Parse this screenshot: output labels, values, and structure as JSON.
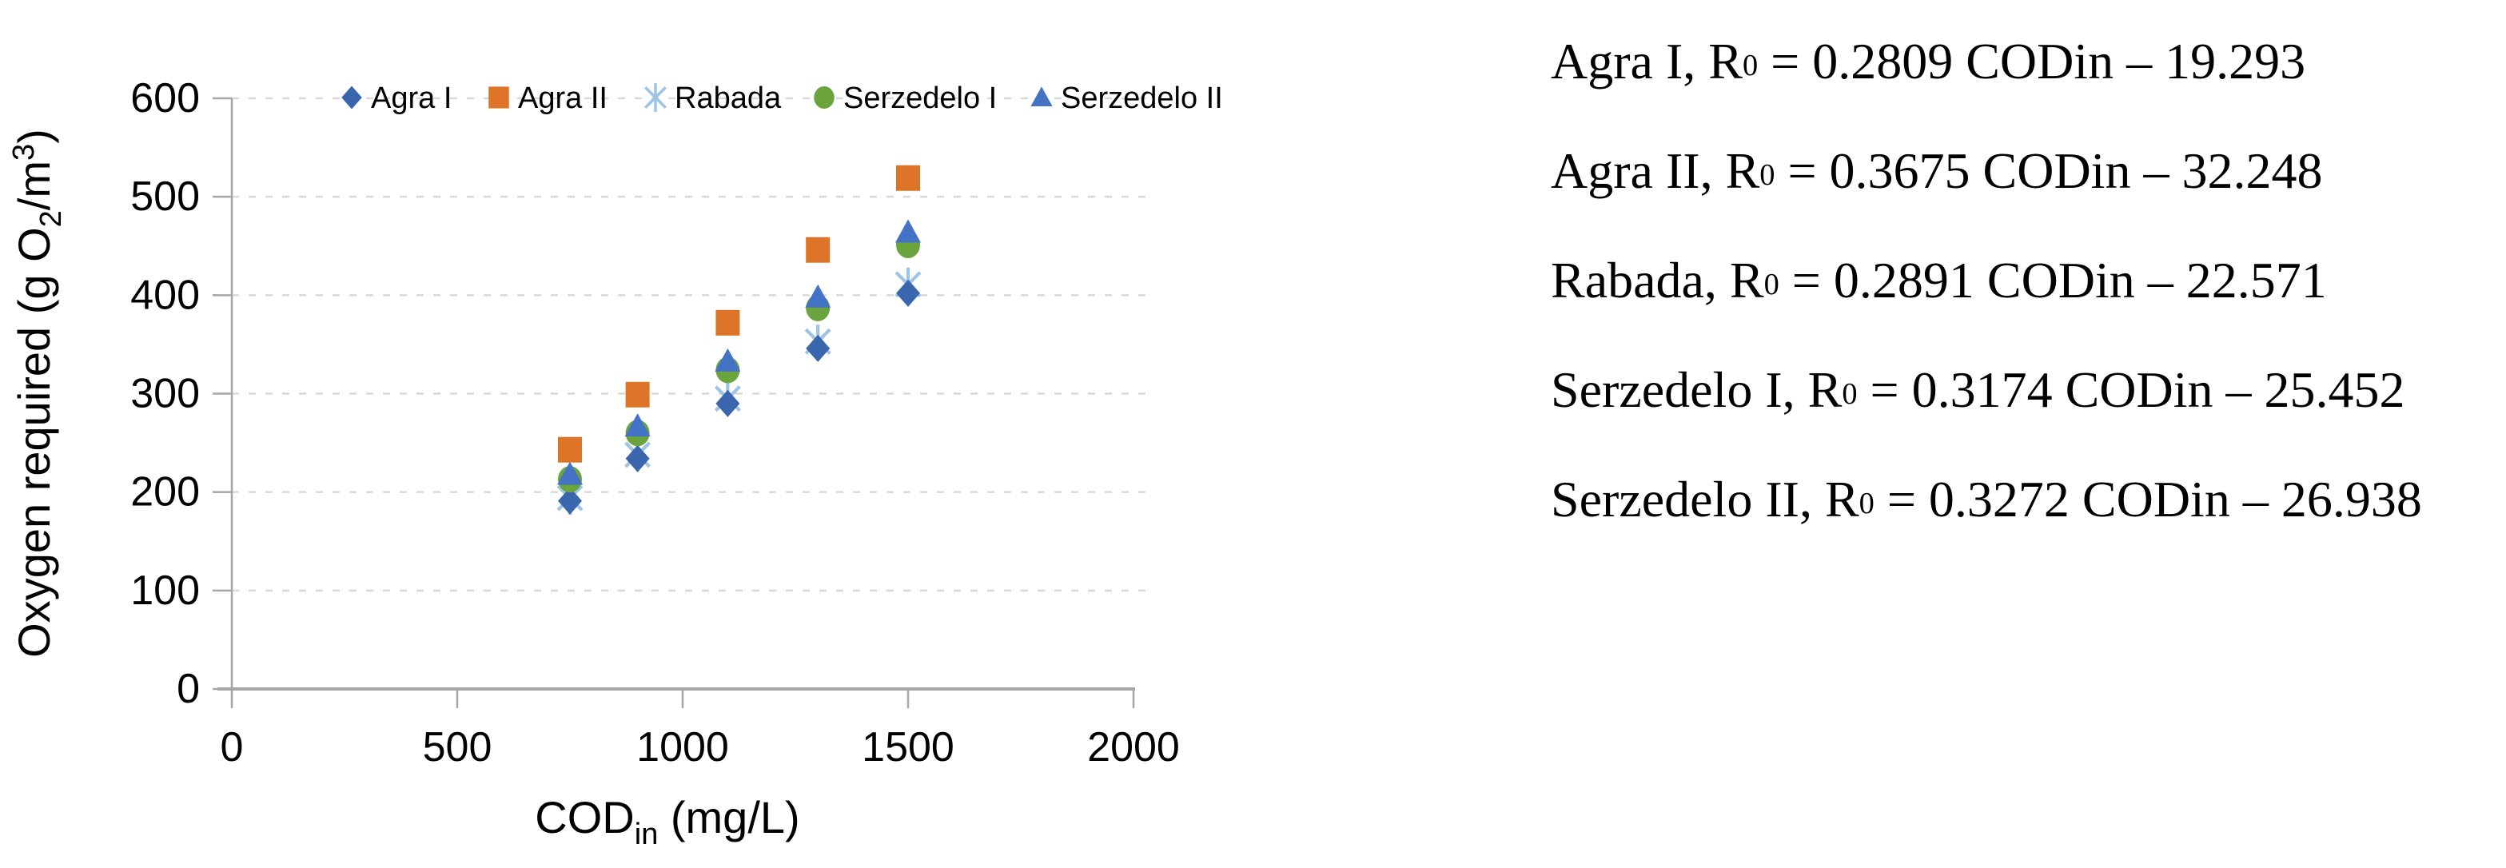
{
  "figure": {
    "background": "#ffffff",
    "text_color": "#000000"
  },
  "chart_data": {
    "type": "scatter",
    "title": "",
    "legend_position": "top",
    "grid": {
      "horizontal": true,
      "style": "dashed",
      "color": "#D9D9D9"
    },
    "axis_color": "#A6A6A6",
    "x_axis": {
      "plain_label": "CODin (mg/L)",
      "label_segments": [
        {
          "t": "COD"
        },
        {
          "t": "in",
          "fmt": "sub"
        },
        {
          "t": " (mg/L)"
        }
      ],
      "range": [
        0,
        2000
      ],
      "ticks": [
        0,
        500,
        1000,
        1500,
        2000
      ]
    },
    "y_axis": {
      "plain_label": "Oxygen required (g O2/m3)",
      "label_segments": [
        {
          "t": "Oxygen required (g O"
        },
        {
          "t": "2",
          "fmt": "sub"
        },
        {
          "t": "/m"
        },
        {
          "t": "3",
          "fmt": "sup"
        },
        {
          "t": ")"
        }
      ],
      "range": [
        0,
        600
      ],
      "ticks": [
        0,
        100,
        200,
        300,
        400,
        500,
        600
      ]
    },
    "x": [
      750,
      900,
      1100,
      1300,
      1500
    ],
    "series": [
      {
        "name": "Agra I",
        "marker": "diamond",
        "color": "#3A66AE",
        "values": [
          191,
          234,
          290,
          346,
          402
        ]
      },
      {
        "name": "Agra II",
        "marker": "square",
        "color": "#DD7428",
        "values": [
          243,
          299,
          372,
          446,
          519
        ]
      },
      {
        "name": "Rabada",
        "marker": "asterisk",
        "color": "#9DC3E6",
        "values": [
          194,
          238,
          295,
          353,
          411
        ]
      },
      {
        "name": "Serzedelo I",
        "marker": "circle",
        "color": "#6BA43D",
        "values": [
          213,
          260,
          324,
          387,
          451
        ]
      },
      {
        "name": "Serzedelo II",
        "marker": "triangle",
        "color": "#4472C4",
        "values": [
          218,
          267,
          333,
          398,
          464
        ]
      }
    ]
  },
  "equations": [
    {
      "before_sub": "Agra I, R",
      "sub": "0",
      "after_sub": " = 0.2809 CODin – 19.293"
    },
    {
      "before_sub": "Agra II, R",
      "sub": "0",
      "after_sub": " = 0.3675 CODin – 32.248"
    },
    {
      "before_sub": "Rabada, R",
      "sub": "0",
      "after_sub": " = 0.2891 CODin – 22.571"
    },
    {
      "before_sub": "Serzedelo I, R",
      "sub": "0",
      "after_sub": " = 0.3174 CODin – 25.452"
    },
    {
      "before_sub": "Serzedelo II, R",
      "sub": "0",
      "after_sub": " = 0.3272 CODin – 26.938"
    }
  ]
}
